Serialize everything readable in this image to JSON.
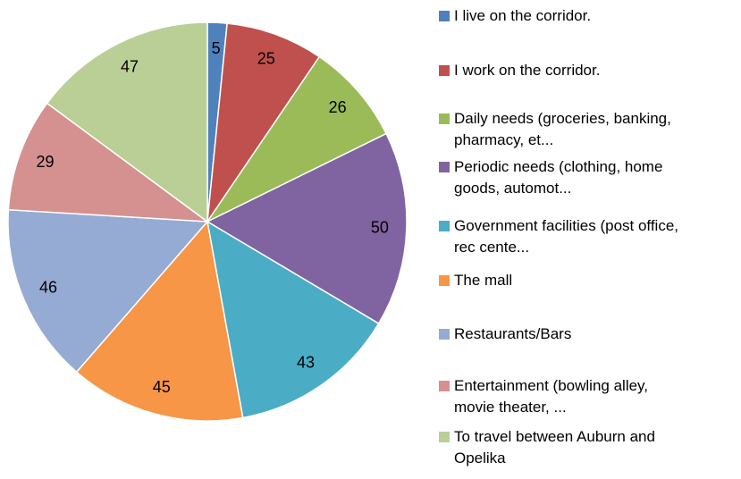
{
  "chart_data": {
    "type": "pie",
    "categories": [
      "I live on the corridor.",
      "I work on the corridor.",
      "Daily needs (groceries, banking, pharmacy, et...",
      "Periodic needs (clothing, home goods, automot...",
      "Government facilities (post office, rec cente...",
      "The mall",
      "Restaurants/Bars",
      "Entertainment (bowling alley, movie theater, ...",
      "To travel between Auburn and Opelika"
    ],
    "values": [
      5,
      25,
      26,
      50,
      43,
      45,
      46,
      29,
      47
    ],
    "colors": [
      "#4f81bd",
      "#c0504d",
      "#9bbb59",
      "#8064a2",
      "#4bacc6",
      "#f79646",
      "#95abd4",
      "#d49190",
      "#b9cf96"
    ],
    "legend": "right"
  }
}
